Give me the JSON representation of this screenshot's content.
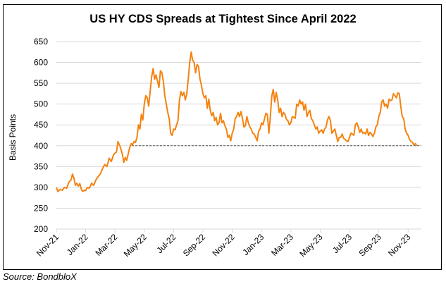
{
  "chart_data": {
    "type": "line",
    "title": "US HY CDS Spreads at Tightest Since April 2022",
    "xlabel": "",
    "ylabel": "Basis Points",
    "ylim": [
      200,
      650
    ],
    "yticks": [
      200,
      250,
      300,
      350,
      400,
      450,
      500,
      550,
      600,
      650
    ],
    "xticks": [
      "Nov-21",
      "Jan-22",
      "Mar-22",
      "May-22",
      "Jul-22",
      "Sep-22",
      "Nov-22",
      "Jan-23",
      "Mar-23",
      "May-23",
      "Jul-23",
      "Sep-23",
      "Nov-23"
    ],
    "grid": true,
    "legend": "none",
    "line_color": "#F5820F",
    "reference_line": {
      "value": 400,
      "start": "Apr-22",
      "style": "dashed",
      "color": "#555555"
    },
    "series": [
      {
        "name": "US HY CDS Spread",
        "x_months_from_nov21": [
          0,
          0.1,
          0.25,
          0.4,
          0.55,
          0.7,
          0.85,
          1.0,
          1.1,
          1.2,
          1.3,
          1.4,
          1.5,
          1.6,
          1.7,
          1.8,
          1.9,
          2.0,
          2.1,
          2.25,
          2.4,
          2.55,
          2.7,
          2.85,
          3.0,
          3.15,
          3.3,
          3.45,
          3.6,
          3.75,
          3.9,
          4.0,
          4.1,
          4.2,
          4.35,
          4.5,
          4.6,
          4.7,
          4.8,
          4.9,
          5.0,
          5.1,
          5.2,
          5.3,
          5.4,
          5.5,
          5.6,
          5.7,
          5.8,
          5.9,
          6.0,
          6.1,
          6.2,
          6.3,
          6.4,
          6.5,
          6.6,
          6.7,
          6.8,
          6.9,
          7.0,
          7.1,
          7.2,
          7.3,
          7.4,
          7.5,
          7.6,
          7.7,
          7.8,
          7.9,
          8.0,
          8.1,
          8.2,
          8.3,
          8.4,
          8.5,
          8.6,
          8.7,
          8.8,
          8.9,
          9.0,
          9.1,
          9.2,
          9.3,
          9.4,
          9.5,
          9.6,
          9.7,
          9.8,
          9.9,
          10.0,
          10.1,
          10.2,
          10.3,
          10.4,
          10.5,
          10.6,
          10.7,
          10.8,
          10.9,
          11.0,
          11.1,
          11.2,
          11.3,
          11.4,
          11.5,
          11.6,
          11.7,
          11.8,
          11.9,
          12.0,
          12.1,
          12.2,
          12.3,
          12.4,
          12.5,
          12.6,
          12.7,
          12.8,
          12.9,
          13.0,
          13.1,
          13.2,
          13.3,
          13.4,
          13.5,
          13.6,
          13.7,
          13.8,
          13.9,
          14.0,
          14.1,
          14.2,
          14.3,
          14.4,
          14.5,
          14.6,
          14.7,
          14.8,
          14.9,
          15.0,
          15.1,
          15.2,
          15.3,
          15.4,
          15.5,
          15.6,
          15.7,
          15.8,
          15.9,
          16.0,
          16.1,
          16.2,
          16.3,
          16.4,
          16.5,
          16.6,
          16.7,
          16.8,
          16.9,
          17.0,
          17.1,
          17.2,
          17.3,
          17.4,
          17.5,
          17.6,
          17.7,
          17.8,
          17.9,
          18.0,
          18.1,
          18.2,
          18.3,
          18.4,
          18.5,
          18.6,
          18.7,
          18.8,
          18.9,
          19.0,
          19.1,
          19.2,
          19.3,
          19.4,
          19.5,
          19.6,
          19.7,
          19.8,
          19.9,
          20.0,
          20.1,
          20.2,
          20.3,
          20.4,
          20.5,
          20.6,
          20.7,
          20.8,
          20.9,
          21.0,
          21.1,
          21.2,
          21.3,
          21.4,
          21.5,
          21.6,
          21.7,
          21.8,
          21.9,
          22.0,
          22.1,
          22.2,
          22.3,
          22.4,
          22.5,
          22.6,
          22.7,
          22.8,
          22.9,
          23.0,
          23.1,
          23.2,
          23.3,
          23.4,
          23.5,
          23.6,
          23.7,
          23.8,
          23.9,
          24.0,
          24.1,
          24.2,
          24.3,
          24.4,
          24.5,
          24.6,
          24.7,
          24.8,
          24.9,
          25.0,
          25.1,
          25.2,
          25.3,
          25.4,
          25.5,
          25.6,
          25.7,
          25.8,
          25.9
        ],
        "values": [
          300,
          290,
          295,
          293,
          300,
          298,
          312,
          318,
          332,
          322,
          305,
          310,
          303,
          309,
          296,
          290,
          293,
          292,
          300,
          298,
          310,
          305,
          318,
          326,
          332,
          345,
          355,
          350,
          370,
          362,
          378,
          382,
          385,
          410,
          398,
          380,
          360,
          372,
          365,
          380,
          395,
          405,
          402,
          410,
          408,
          420,
          450,
          440,
          475,
          462,
          500,
          520,
          515,
          495,
          530,
          565,
          585,
          560,
          570,
          555,
          540,
          580,
          575,
          555,
          520,
          500,
          480,
          465,
          430,
          425,
          440,
          438,
          450,
          460,
          510,
          530,
          520,
          528,
          510,
          525,
          560,
          600,
          625,
          605,
          600,
          575,
          595,
          590,
          560,
          545,
          525,
          515,
          520,
          490,
          512,
          485,
          472,
          480,
          460,
          468,
          450,
          455,
          478,
          455,
          460,
          448,
          440,
          420,
          425,
          412,
          430,
          440,
          465,
          470,
          480,
          470,
          482,
          465,
          445,
          448,
          470,
          455,
          445,
          440,
          430,
          428,
          420,
          412,
          435,
          440,
          455,
          450,
          465,
          478,
          475,
          430,
          470,
          520,
          535,
          505,
          528,
          510,
          480,
          490,
          470,
          480,
          475,
          463,
          460,
          450,
          455,
          470,
          468,
          466,
          500,
          495,
          510,
          500,
          505,
          485,
          500,
          470,
          480,
          485,
          465,
          460,
          450,
          440,
          445,
          430,
          435,
          438,
          430,
          440,
          445,
          462,
          470,
          460,
          430,
          435,
          440,
          425,
          410,
          420,
          420,
          428,
          418,
          415,
          412,
          410,
          420,
          430,
          428,
          425,
          450,
          455,
          445,
          432,
          440,
          430,
          432,
          428,
          440,
          425,
          432,
          428,
          422,
          430,
          445,
          450,
          470,
          480,
          505,
          510,
          495,
          500,
          490,
          512,
          508,
          510,
          525,
          520,
          515,
          527,
          525,
          495,
          470,
          465,
          440,
          430,
          425,
          415,
          410,
          408,
          402,
          405,
          400
        ]
      }
    ]
  },
  "source_label": "Source: BondbloX"
}
